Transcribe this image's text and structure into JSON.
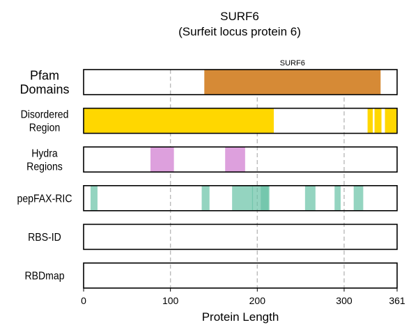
{
  "chart_data": {
    "type": "bar",
    "title": "SURF6",
    "subtitle": "(Surfeit locus protein 6)",
    "xlabel": "Protein Length",
    "xlim": [
      0,
      361
    ],
    "xticks": [
      0,
      100,
      200,
      300,
      361
    ],
    "gridlines": [
      100,
      200,
      300
    ],
    "tracks": [
      {
        "name": "pfam",
        "label_lines": [
          "Pfam",
          "Domains"
        ],
        "color": "#d68a36",
        "segments": [
          {
            "start": 139,
            "end": 342,
            "label": "SURF6"
          }
        ]
      },
      {
        "name": "disordered",
        "label_lines": [
          "Disordered",
          "Region"
        ],
        "color": "#ffd700",
        "segments": [
          {
            "start": 0,
            "end": 219
          },
          {
            "start": 327,
            "end": 333
          },
          {
            "start": 335,
            "end": 343
          },
          {
            "start": 347,
            "end": 361
          }
        ]
      },
      {
        "name": "hydra",
        "label_lines": [
          "Hydra",
          "Regions"
        ],
        "color": "#dda0dd",
        "segments": [
          {
            "start": 77,
            "end": 104
          },
          {
            "start": 163,
            "end": 186
          }
        ]
      },
      {
        "name": "pepfax",
        "label_lines": [
          "pepFAX-RIC"
        ],
        "color": "#66c2a5",
        "segments": [
          {
            "start": 8,
            "end": 16,
            "opacity": 0.7
          },
          {
            "start": 136,
            "end": 145,
            "opacity": 0.7
          },
          {
            "start": 171,
            "end": 195,
            "opacity": 0.7
          },
          {
            "start": 194,
            "end": 213,
            "opacity": 0.7
          },
          {
            "start": 204,
            "end": 214,
            "opacity": 0.7
          },
          {
            "start": 255,
            "end": 267,
            "opacity": 0.7
          },
          {
            "start": 289,
            "end": 296,
            "opacity": 0.7
          },
          {
            "start": 311,
            "end": 322,
            "opacity": 0.7
          }
        ]
      },
      {
        "name": "rbsid",
        "label_lines": [
          "RBS-ID"
        ],
        "color": "#66c2a5",
        "segments": []
      },
      {
        "name": "rbdmap",
        "label_lines": [
          "RBDmap"
        ],
        "color": "#66c2a5",
        "segments": []
      }
    ]
  }
}
